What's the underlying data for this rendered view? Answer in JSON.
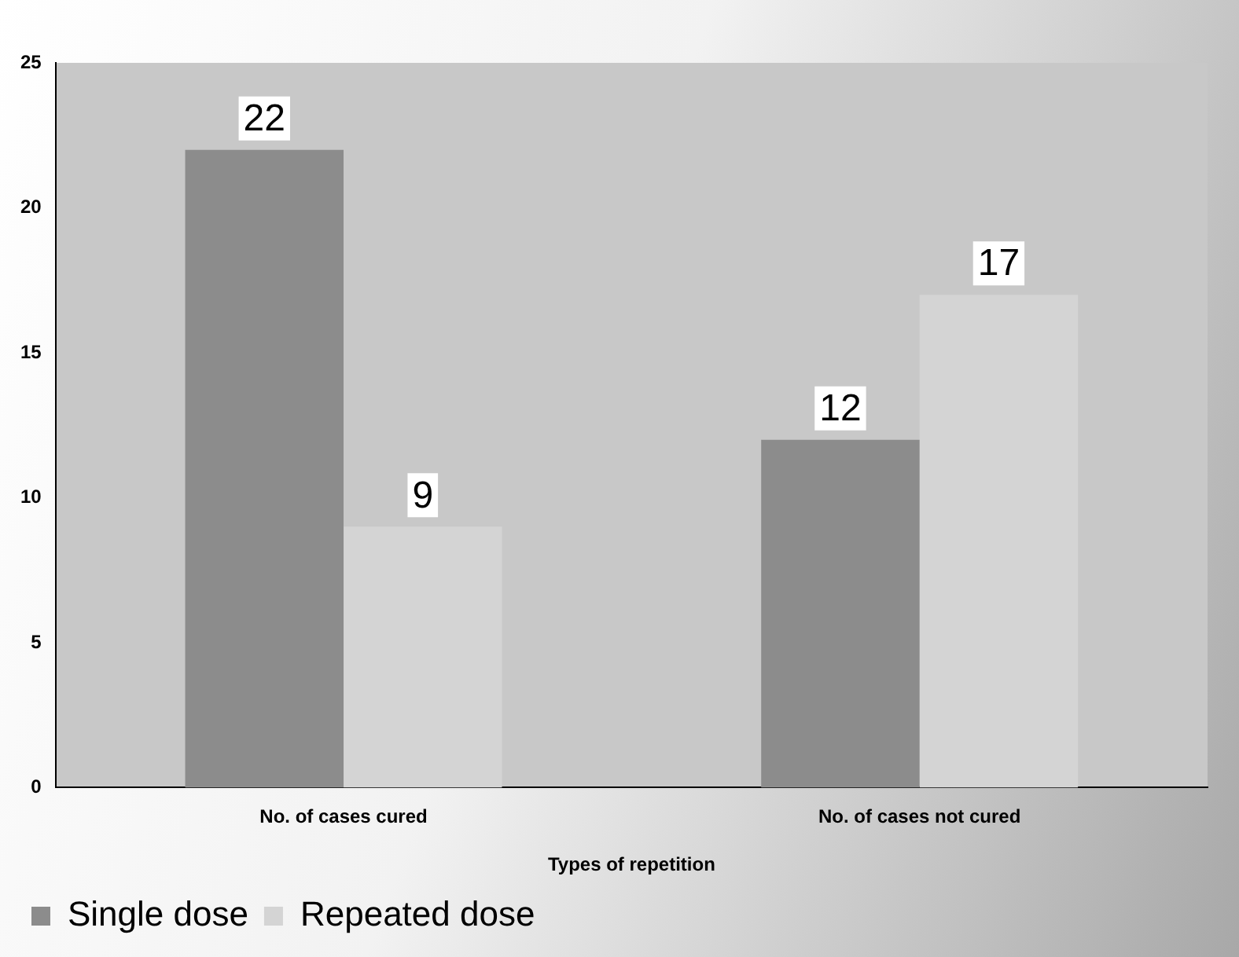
{
  "chart_data": {
    "type": "bar",
    "xlabel": "Types of repetition",
    "categories": [
      "No. of cases cured",
      "No. of cases not cured"
    ],
    "series": [
      {
        "name": "Single dose",
        "color": "#8c8c8c",
        "values": [
          22,
          12
        ]
      },
      {
        "name": "Repeated dose",
        "color": "#d4d4d4",
        "values": [
          9,
          17
        ]
      }
    ],
    "ylim": [
      0,
      25
    ],
    "yticks": [
      0,
      5,
      10,
      15,
      20,
      25
    ],
    "grid": false,
    "legend": "bottom left",
    "data_labels": true
  }
}
